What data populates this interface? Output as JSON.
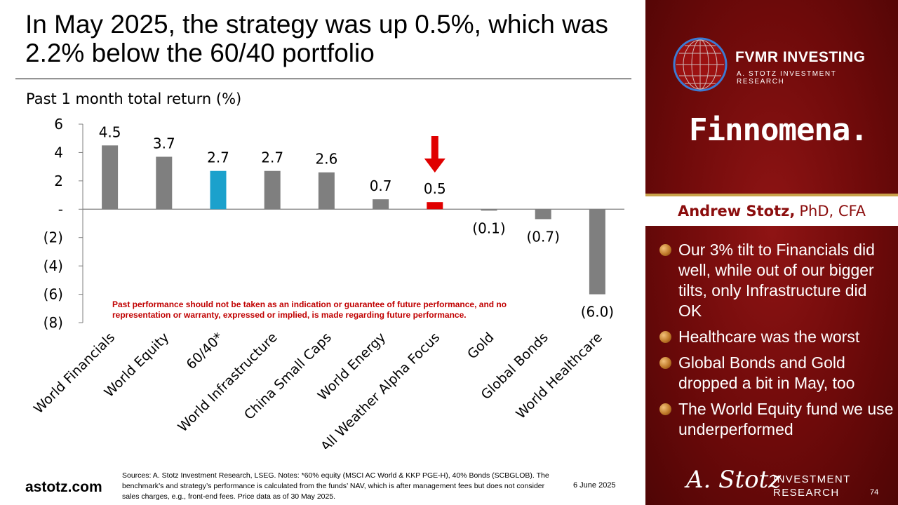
{
  "slide": {
    "title": "In May 2025, the strategy was up 0.5%, which was 2.2% below the 60/40 portfolio",
    "disclaimer": "Past performance should not be taken as an indication or guarantee of future performance, and no representation or warranty, expressed or implied, is made regarding future performance.",
    "footer_url": "astotz.com",
    "sources": "Sources: A. Stotz Investment Research, LSEG. Notes: *60% equity (MSCI AC World & KKP PGE-H), 40% Bonds (SCBGLOB). The benchmark’s and strategy’s performance is calculated from the funds’ NAV, which is after management fees but does not consider sales charges, e.g., front-end fees. Price data as of 30 May 2025.",
    "date": "6 June 2025",
    "page_number": "74"
  },
  "chart_data": {
    "type": "bar",
    "title": "Past 1 month total return (%)",
    "categories": [
      "World Financials",
      "World Equity",
      "60/40*",
      "World Infrastructure",
      "China Small Caps",
      "World Energy",
      "All Weather Alpha Focus",
      "Gold",
      "Global Bonds",
      "World Healthcare"
    ],
    "values": [
      4.5,
      3.7,
      2.7,
      2.7,
      2.6,
      0.7,
      0.5,
      -0.1,
      -0.7,
      -6.0
    ],
    "value_labels": [
      "4.5",
      "3.7",
      "2.7",
      "2.7",
      "2.6",
      "0.7",
      "0.5",
      "(0.1)",
      "(0.7)",
      "(6.0)"
    ],
    "bar_colors": [
      "#7f7f7f",
      "#7f7f7f",
      "#1ba1cc",
      "#7f7f7f",
      "#7f7f7f",
      "#7f7f7f",
      "#e00000",
      "#7f7f7f",
      "#7f7f7f",
      "#7f7f7f"
    ],
    "yticks": [
      6,
      4,
      2,
      0,
      -2,
      -4,
      -6,
      -8
    ],
    "ytick_labels": [
      "6",
      "4",
      "2",
      "-",
      "(2)",
      "(4)",
      "(6)",
      "(8)"
    ],
    "ylim": [
      -8,
      6
    ],
    "highlight_arrow": {
      "category": "All Weather Alpha Focus",
      "color": "#e00000",
      "icon": "down-arrow-icon"
    },
    "grid": false,
    "legend": "none"
  },
  "sidebar": {
    "brand_name": "FVMR INVESTING",
    "brand_sub": "A. STOTZ INVESTMENT RESEARCH",
    "partner": "Finnomena.",
    "presenter_name": "Andrew Stotz,",
    "presenter_credentials": "PhD, CFA",
    "bullets": [
      "Our 3% tilt to Financials did well, while out of our bigger tilts, only Infrastructure did OK",
      "Healthcare was the worst",
      "Global Bonds and Gold dropped a bit in May, too",
      "The World Equity fund we use underperformed"
    ],
    "signature": "A. Stotz",
    "ir_line1": "INVESTMENT",
    "ir_line2": "RESEARCH"
  }
}
